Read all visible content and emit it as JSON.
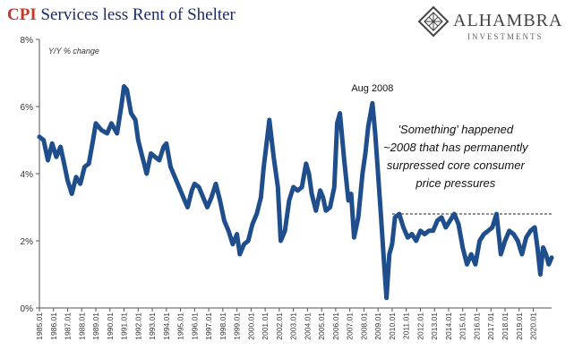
{
  "title_prefix": "CPI",
  "title_suffix": "Services less Rent of Shelter",
  "logo": {
    "brand": "ALHAMBRA",
    "sub": "INVESTMENTS"
  },
  "chart_data": {
    "type": "line",
    "ylabel": "Y/Y % change",
    "ylim": [
      0,
      8
    ],
    "y_ticks": [
      0,
      2,
      4,
      6,
      8
    ],
    "y_tick_labels": [
      "0%",
      "2%",
      "4%",
      "6%",
      "8%"
    ],
    "x_tick_labels": [
      "1985.01",
      "1986.01",
      "1987.01",
      "1988.01",
      "1989.01",
      "1990.01",
      "1991.01",
      "1992.01",
      "1993.01",
      "1994.01",
      "1995.01",
      "1996.01",
      "1997.01",
      "1998.01",
      "1999.01",
      "2000.01",
      "2001.01",
      "2002.01",
      "2003.01",
      "2004.01",
      "2005.01",
      "2006.01",
      "2007.01",
      "2008.01",
      "2009.01",
      "2010.01",
      "2011.01",
      "2012.01",
      "2013.01",
      "2014.01",
      "2015.01",
      "2016.01",
      "2017.01",
      "2018.01",
      "2019.01",
      "2020.01"
    ],
    "series": [
      {
        "color": "#1f4e8c",
        "x": [
          1985.0,
          1985.3,
          1985.6,
          1985.9,
          1986.2,
          1986.5,
          1986.8,
          1987.0,
          1987.3,
          1987.6,
          1987.9,
          1988.2,
          1988.5,
          1988.8,
          1989.0,
          1989.4,
          1989.8,
          1990.1,
          1990.5,
          1990.8,
          1991.0,
          1991.2,
          1991.5,
          1991.8,
          1992.0,
          1992.3,
          1992.6,
          1992.9,
          1993.2,
          1993.5,
          1993.8,
          1994.0,
          1994.3,
          1994.6,
          1994.9,
          1995.2,
          1995.5,
          1995.8,
          1996.0,
          1996.3,
          1996.6,
          1996.9,
          1997.2,
          1997.5,
          1997.8,
          1998.1,
          1998.4,
          1998.7,
          1999.0,
          1999.2,
          1999.5,
          1999.8,
          2000.1,
          2000.4,
          2000.7,
          2000.9,
          2001.1,
          2001.3,
          2001.6,
          2001.9,
          2002.1,
          2002.4,
          2002.7,
          2003.0,
          2003.3,
          2003.6,
          2003.9,
          2004.1,
          2004.3,
          2004.6,
          2004.9,
          2005.1,
          2005.3,
          2005.6,
          2005.9,
          2006.1,
          2006.3,
          2006.6,
          2006.9,
          2007.1,
          2007.3,
          2007.6,
          2007.9,
          2008.1,
          2008.3,
          2008.6,
          2008.8,
          2009.0,
          2009.2,
          2009.4,
          2009.6,
          2009.8,
          2010.0,
          2010.2,
          2010.5,
          2010.8,
          2011.1,
          2011.4,
          2011.7,
          2012.0,
          2012.3,
          2012.6,
          2012.9,
          2013.2,
          2013.5,
          2013.8,
          2014.1,
          2014.4,
          2014.7,
          2015.0,
          2015.3,
          2015.6,
          2015.9,
          2016.2,
          2016.5,
          2016.8,
          2017.1,
          2017.4,
          2017.7,
          2018.0,
          2018.3,
          2018.6,
          2018.9,
          2019.2,
          2019.5,
          2019.8,
          2020.1,
          2020.3,
          2020.5,
          2020.7,
          2020.9,
          2021.1,
          2021.3
        ],
        "y": [
          5.1,
          5.0,
          4.4,
          4.9,
          4.5,
          4.8,
          4.2,
          3.8,
          3.4,
          3.9,
          3.7,
          4.2,
          4.3,
          5.0,
          5.5,
          5.3,
          5.2,
          5.5,
          5.2,
          6.0,
          6.6,
          6.5,
          5.8,
          5.6,
          5.0,
          4.5,
          4.0,
          4.6,
          4.5,
          4.4,
          4.8,
          4.9,
          4.2,
          3.9,
          3.6,
          3.3,
          3.0,
          3.5,
          3.7,
          3.6,
          3.3,
          3.0,
          3.3,
          3.7,
          3.2,
          2.6,
          2.3,
          1.9,
          2.2,
          1.6,
          1.9,
          2.0,
          2.5,
          2.8,
          3.3,
          4.2,
          4.9,
          5.6,
          4.5,
          3.6,
          2.0,
          2.3,
          3.2,
          3.6,
          3.5,
          3.6,
          4.3,
          4.0,
          3.4,
          2.9,
          3.5,
          3.3,
          2.9,
          3.0,
          3.6,
          5.5,
          5.8,
          4.4,
          3.2,
          3.4,
          2.1,
          2.7,
          4.0,
          4.6,
          5.4,
          6.1,
          5.2,
          4.0,
          2.8,
          1.5,
          0.3,
          1.6,
          1.9,
          2.7,
          2.8,
          2.4,
          2.1,
          2.2,
          2.0,
          2.3,
          2.2,
          2.3,
          2.3,
          2.6,
          2.7,
          2.4,
          2.6,
          2.8,
          2.5,
          1.8,
          1.3,
          1.6,
          1.3,
          2.0,
          2.2,
          2.3,
          2.4,
          2.8,
          1.6,
          2.0,
          2.3,
          2.2,
          2.0,
          1.6,
          2.1,
          2.3,
          2.4,
          1.8,
          1.0,
          1.8,
          1.6,
          1.3,
          1.5
        ]
      }
    ],
    "reference_line": {
      "value": 2.8,
      "from_x": 2010.0,
      "style": "dashed"
    },
    "annotations": [
      {
        "text": "Aug 2008",
        "x": 2008.6,
        "y": 6.45
      },
      {
        "lines": [
          "'Something' happened",
          "~2008 that has permanently",
          "surpressed core consumer",
          "price pressures"
        ],
        "x": 2014.5,
        "y": 5.2
      }
    ]
  }
}
